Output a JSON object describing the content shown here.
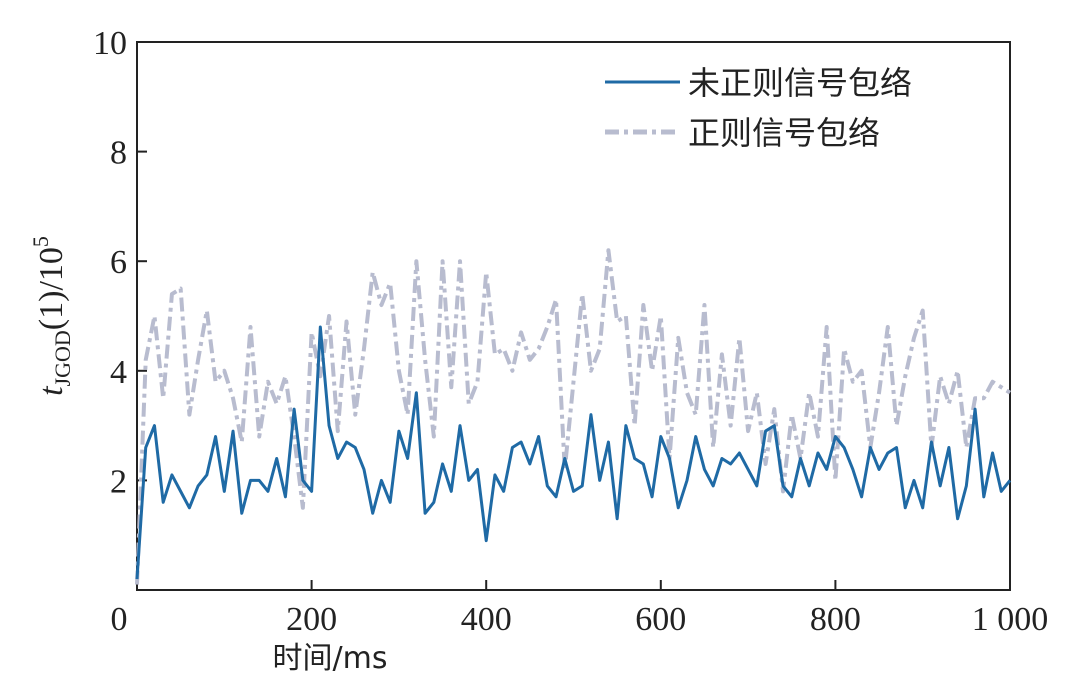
{
  "chart_data": {
    "type": "line",
    "ylabel": {
      "main": "t",
      "sub": "JGOD",
      "rest": "(1)/10",
      "sup": "5"
    },
    "xlabel": "时间/ms",
    "x": [
      0,
      10,
      20,
      30,
      40,
      50,
      60,
      70,
      80,
      90,
      100,
      110,
      120,
      130,
      140,
      150,
      160,
      170,
      180,
      190,
      200,
      210,
      220,
      230,
      240,
      250,
      260,
      270,
      280,
      290,
      300,
      310,
      320,
      330,
      340,
      350,
      360,
      370,
      380,
      390,
      400,
      410,
      420,
      430,
      440,
      450,
      460,
      470,
      480,
      490,
      500,
      510,
      520,
      530,
      540,
      550,
      560,
      570,
      580,
      590,
      600,
      610,
      620,
      630,
      640,
      650,
      660,
      670,
      680,
      690,
      700,
      710,
      720,
      730,
      740,
      750,
      760,
      770,
      780,
      790,
      800,
      810,
      820,
      830,
      840,
      850,
      860,
      870,
      880,
      890,
      900,
      910,
      920,
      930,
      940,
      950,
      960,
      970,
      980,
      990,
      1000
    ],
    "series": [
      {
        "name": "未正则信号包络",
        "color": "#1f6aa5",
        "dash": false,
        "values": [
          0.2,
          2.6,
          3.0,
          1.6,
          2.1,
          1.8,
          1.5,
          1.9,
          2.1,
          2.8,
          1.8,
          2.9,
          1.4,
          2.0,
          2.0,
          1.8,
          2.4,
          1.7,
          3.3,
          2.0,
          1.8,
          4.8,
          3.0,
          2.4,
          2.7,
          2.6,
          2.2,
          1.4,
          2.0,
          1.6,
          2.9,
          2.4,
          3.6,
          1.4,
          1.6,
          2.3,
          1.8,
          3.0,
          2.0,
          2.2,
          0.9,
          2.1,
          1.8,
          2.6,
          2.7,
          2.3,
          2.8,
          1.9,
          1.7,
          2.4,
          1.8,
          1.9,
          3.2,
          2.0,
          2.7,
          1.3,
          3.0,
          2.4,
          2.3,
          1.7,
          2.8,
          2.4,
          1.5,
          2.0,
          2.8,
          2.2,
          1.9,
          2.4,
          2.3,
          2.5,
          2.2,
          1.9,
          2.9,
          3.0,
          1.9,
          1.7,
          2.4,
          1.9,
          2.5,
          2.2,
          2.8,
          2.6,
          2.2,
          1.7,
          2.6,
          2.2,
          2.5,
          2.6,
          1.5,
          2.0,
          1.5,
          2.7,
          1.9,
          2.6,
          1.3,
          1.9,
          3.3,
          1.7,
          2.5,
          1.8,
          2.0
        ]
      },
      {
        "name": "正则信号包络",
        "color": "#b8bccf",
        "dash": true,
        "values": [
          0.1,
          4.2,
          5.0,
          3.5,
          5.4,
          5.5,
          3.2,
          4.2,
          5.1,
          3.8,
          4.0,
          3.5,
          2.7,
          4.8,
          2.8,
          3.8,
          3.4,
          3.9,
          2.8,
          1.5,
          4.7,
          3.9,
          5.0,
          2.9,
          4.9,
          3.2,
          4.4,
          5.8,
          5.2,
          5.6,
          4.0,
          3.2,
          6.0,
          4.2,
          2.8,
          6.0,
          3.7,
          6.0,
          3.4,
          3.8,
          5.8,
          4.3,
          4.4,
          4.0,
          4.7,
          4.2,
          4.4,
          4.8,
          5.3,
          2.2,
          3.8,
          5.4,
          4.0,
          4.4,
          6.2,
          4.9,
          5.0,
          3.0,
          5.2,
          4.0,
          5.0,
          2.4,
          4.6,
          3.6,
          3.2,
          5.2,
          2.6,
          4.3,
          3.0,
          4.6,
          2.9,
          3.6,
          2.3,
          3.3,
          1.8,
          3.2,
          2.4,
          3.6,
          2.8,
          4.8,
          2.0,
          4.4,
          3.8,
          4.0,
          2.6,
          3.6,
          4.8,
          3.0,
          3.9,
          4.6,
          5.1,
          2.6,
          3.9,
          3.4,
          4.0,
          2.6,
          3.5,
          3.5,
          3.8,
          3.7,
          3.6
        ]
      }
    ],
    "xlim": [
      0,
      1000
    ],
    "ylim": [
      0,
      10
    ],
    "xticks": [
      0,
      200,
      400,
      600,
      800,
      {
        "value": 1000,
        "label": "1 000"
      }
    ],
    "yticks": [
      2,
      4,
      6,
      8,
      10
    ],
    "legend": "upper right"
  }
}
